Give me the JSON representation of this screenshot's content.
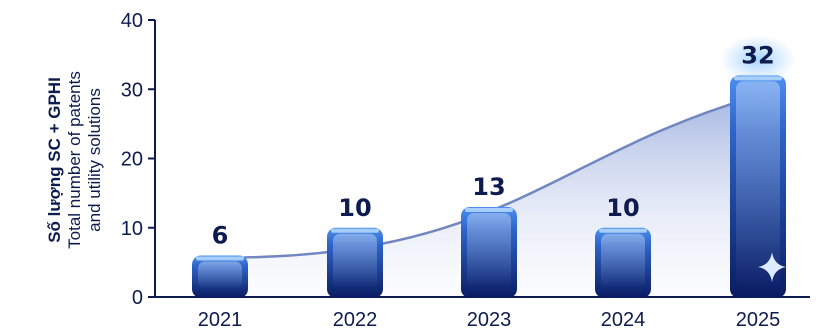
{
  "chart_data": {
    "type": "bar",
    "categories": [
      "2021",
      "2022",
      "2023",
      "2024",
      "2025"
    ],
    "values": [
      6,
      10,
      13,
      10,
      32
    ],
    "ylabel_line1": "Số lượng SC + GPHI",
    "ylabel_line2": "Total number of patents",
    "ylabel_line3": "and utility solutions",
    "ylim": [
      0,
      40
    ],
    "yticks": [
      0,
      10,
      20,
      30,
      40
    ],
    "grid": false,
    "trend_line": true,
    "highlight_index": 4
  },
  "colors": {
    "text": "#0d1b4f",
    "bar_top": "#3d7ee0",
    "bar_bottom": "#0b1f66",
    "highlight_top": "#4a90f0",
    "trend_line": "#6d83c0"
  },
  "icons": {
    "highlight": "sparkle-icon"
  }
}
